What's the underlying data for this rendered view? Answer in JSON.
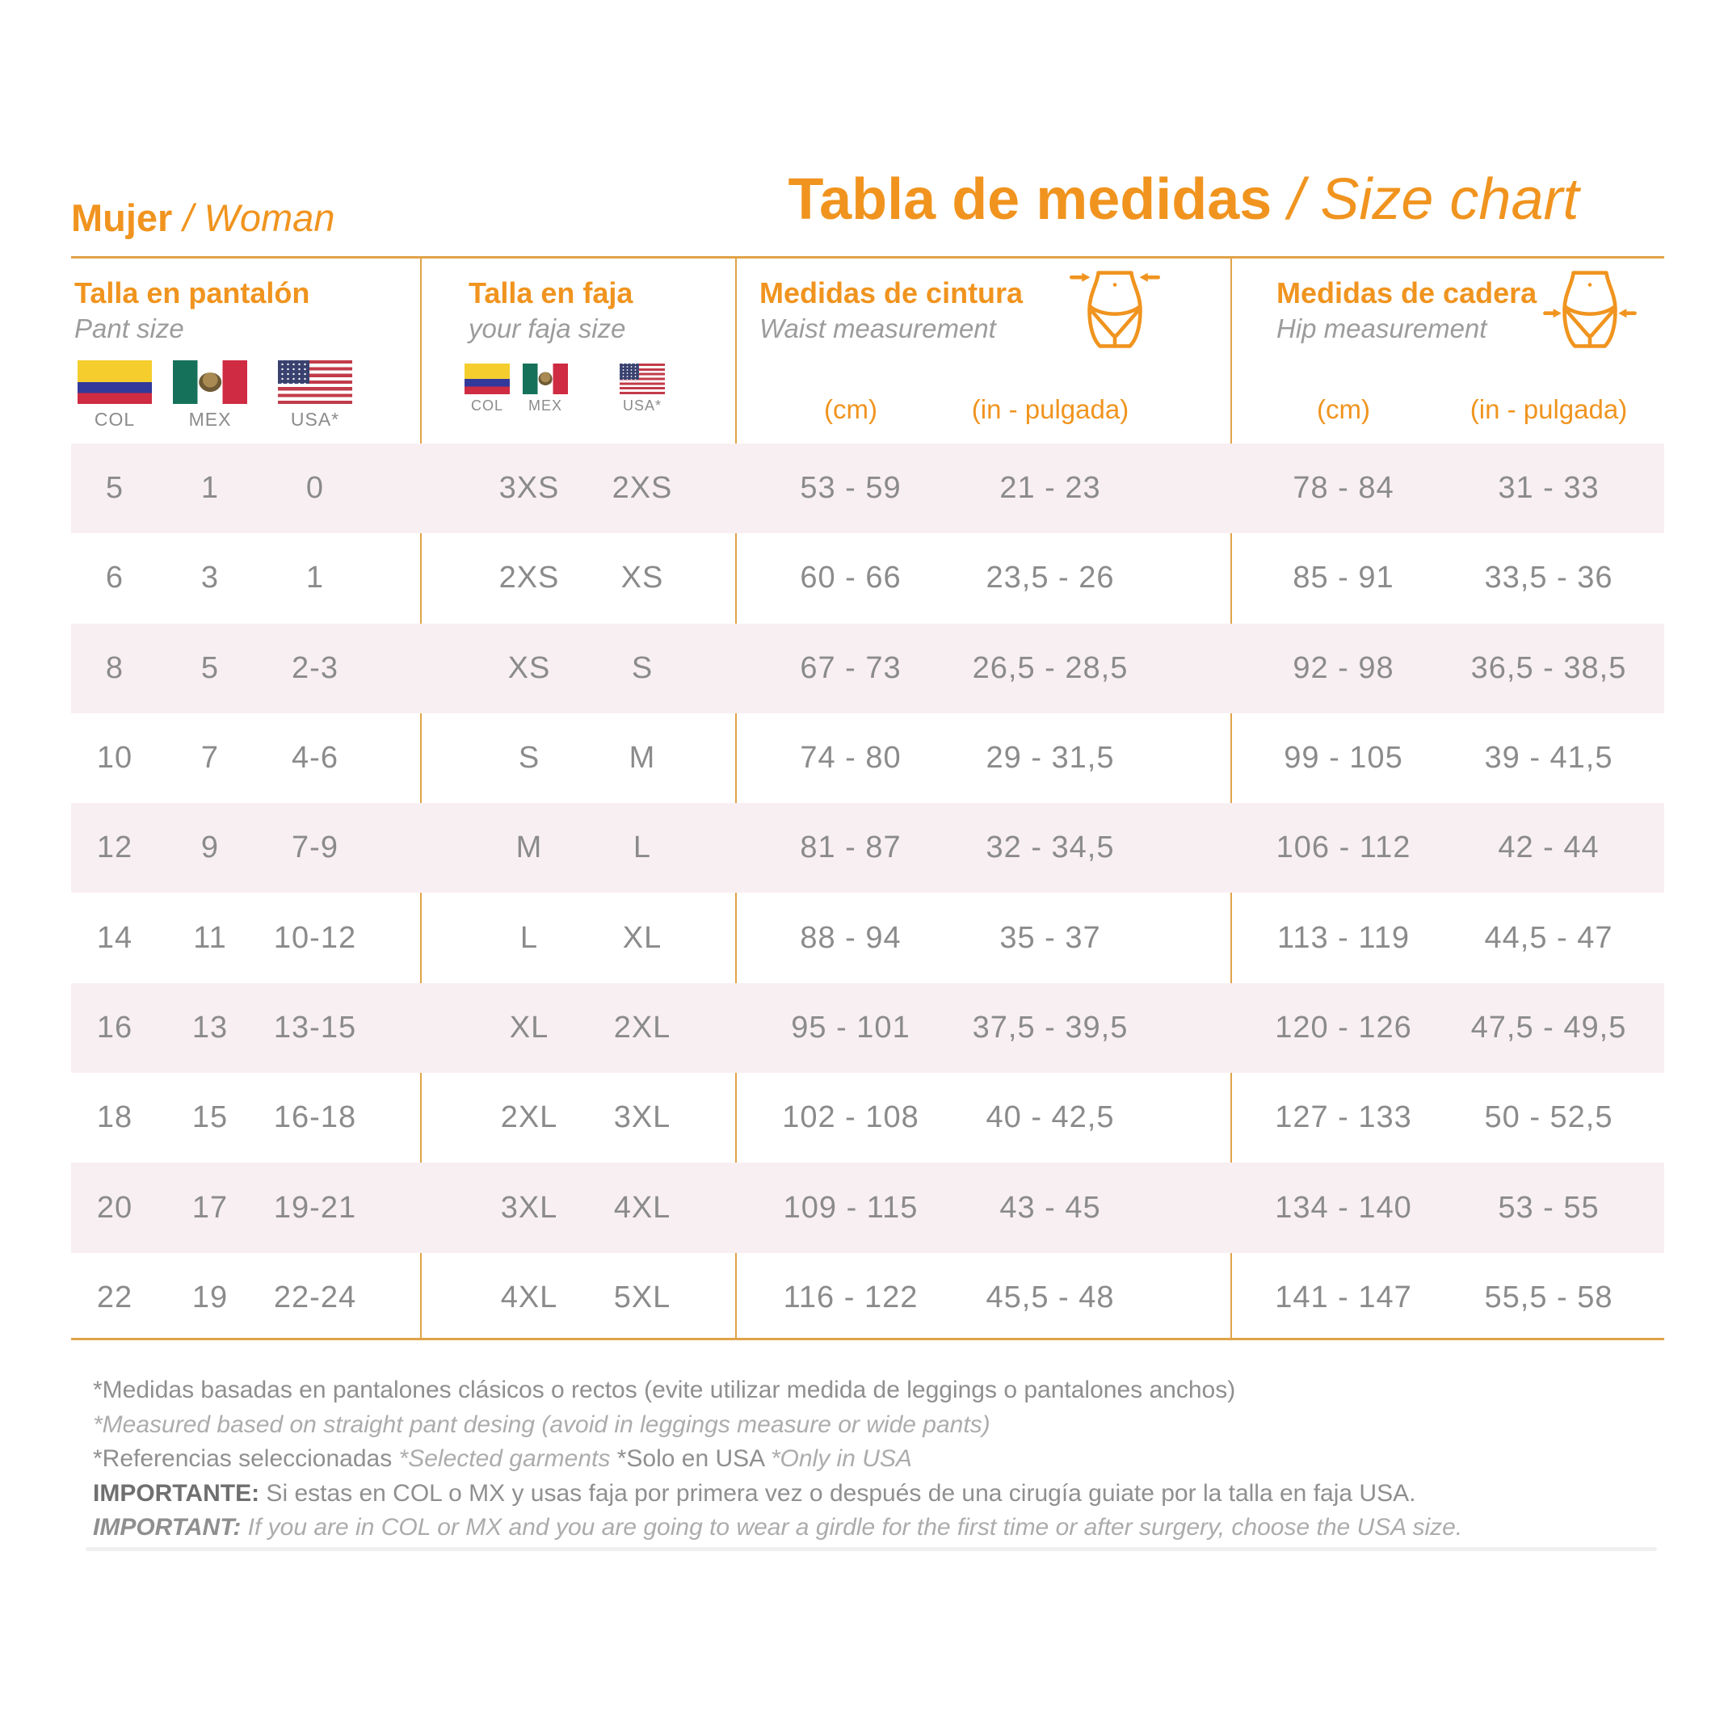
{
  "colors": {
    "accent": "#F0941F",
    "table_lines": "#E0A348",
    "row_stripe_pink": "#F8EFF3",
    "data_text_gray": "#8B8B8B"
  },
  "header": {
    "subject_bold": "Mujer",
    "subject_italic": " / Woman",
    "title_bold": "Tabla de medidas",
    "title_italic": " / Size chart"
  },
  "groups": {
    "pant": {
      "title": "Talla en pantalón",
      "subtitle": "Pant size",
      "flags": {
        "col": "COL",
        "mex": "MEX",
        "usa": "USA*"
      }
    },
    "faja": {
      "title": "Talla en faja",
      "subtitle": "your faja size",
      "flags": {
        "col": "COL",
        "mex": "MEX",
        "usa": "USA*"
      }
    },
    "waist": {
      "title": "Medidas de cintura",
      "subtitle": "Waist measurement",
      "units": [
        "(cm)",
        "(in - pulgada)"
      ]
    },
    "hip": {
      "title": "Medidas de cadera",
      "subtitle": "Hip measurement",
      "units": [
        "(cm)",
        "(in - pulgada)"
      ]
    }
  },
  "table": {
    "rows": [
      {
        "pant_col": "5",
        "pant_mex": "1",
        "pant_usa": "0",
        "faja_col_mx": "3XS",
        "faja_usa": "2XS",
        "waist_cm": "53 - 59",
        "waist_in": "21 - 23",
        "hip_cm": "78 - 84",
        "hip_in": "31 - 33"
      },
      {
        "pant_col": "6",
        "pant_mex": "3",
        "pant_usa": "1",
        "faja_col_mx": "2XS",
        "faja_usa": "XS",
        "waist_cm": "60 - 66",
        "waist_in": "23,5 - 26",
        "hip_cm": "85 - 91",
        "hip_in": "33,5 - 36"
      },
      {
        "pant_col": "8",
        "pant_mex": "5",
        "pant_usa": "2-3",
        "faja_col_mx": "XS",
        "faja_usa": "S",
        "waist_cm": "67 - 73",
        "waist_in": "26,5 - 28,5",
        "hip_cm": "92 - 98",
        "hip_in": "36,5 - 38,5"
      },
      {
        "pant_col": "10",
        "pant_mex": "7",
        "pant_usa": "4-6",
        "faja_col_mx": "S",
        "faja_usa": "M",
        "waist_cm": "74 - 80",
        "waist_in": "29 - 31,5",
        "hip_cm": "99 - 105",
        "hip_in": "39 - 41,5"
      },
      {
        "pant_col": "12",
        "pant_mex": "9",
        "pant_usa": "7-9",
        "faja_col_mx": "M",
        "faja_usa": "L",
        "waist_cm": "81 - 87",
        "waist_in": "32 - 34,5",
        "hip_cm": "106 - 112",
        "hip_in": "42 - 44"
      },
      {
        "pant_col": "14",
        "pant_mex": "11",
        "pant_usa": "10-12",
        "faja_col_mx": "L",
        "faja_usa": "XL",
        "waist_cm": "88 - 94",
        "waist_in": "35 - 37",
        "hip_cm": "113 - 119",
        "hip_in": "44,5 - 47"
      },
      {
        "pant_col": "16",
        "pant_mex": "13",
        "pant_usa": "13-15",
        "faja_col_mx": "XL",
        "faja_usa": "2XL",
        "waist_cm": "95 - 101",
        "waist_in": "37,5 - 39,5",
        "hip_cm": "120 - 126",
        "hip_in": "47,5 - 49,5"
      },
      {
        "pant_col": "18",
        "pant_mex": "15",
        "pant_usa": "16-18",
        "faja_col_mx": "2XL",
        "faja_usa": "3XL",
        "waist_cm": "102 - 108",
        "waist_in": "40 - 42,5",
        "hip_cm": "127 - 133",
        "hip_in": "50 - 52,5"
      },
      {
        "pant_col": "20",
        "pant_mex": "17",
        "pant_usa": "19-21",
        "faja_col_mx": "3XL",
        "faja_usa": "4XL",
        "waist_cm": "109 - 115",
        "waist_in": "43 - 45",
        "hip_cm": "134 - 140",
        "hip_in": "53 - 55"
      },
      {
        "pant_col": "22",
        "pant_mex": "19",
        "pant_usa": "22-24",
        "faja_col_mx": "4XL",
        "faja_usa": "5XL",
        "waist_cm": "116 - 122",
        "waist_in": "45,5 - 48",
        "hip_cm": "141 - 147",
        "hip_in": "55,5 - 58"
      }
    ]
  },
  "footer": {
    "line1": "*Medidas basadas en pantalones clásicos o rectos (evite utilizar medida de leggings o pantalones anchos)",
    "line2": "*Measured based on straight pant desing (avoid in leggings measure or wide pants)",
    "line3a": "*Referencias seleccionadas ",
    "line3b": "*Selected garments ",
    "line3c": "*Solo en USA ",
    "line3d": "*Only in USA",
    "line4_label": "IMPORTANTE:",
    "line4_text": " Si estas en COL o MX y usas faja por primera vez o después de una cirugía guiate por la talla en faja USA.",
    "line5_label": "IMPORTANT:",
    "line5_text": " If you are in COL or MX and you are going to wear a girdle for the first time or after surgery, choose the USA size."
  }
}
